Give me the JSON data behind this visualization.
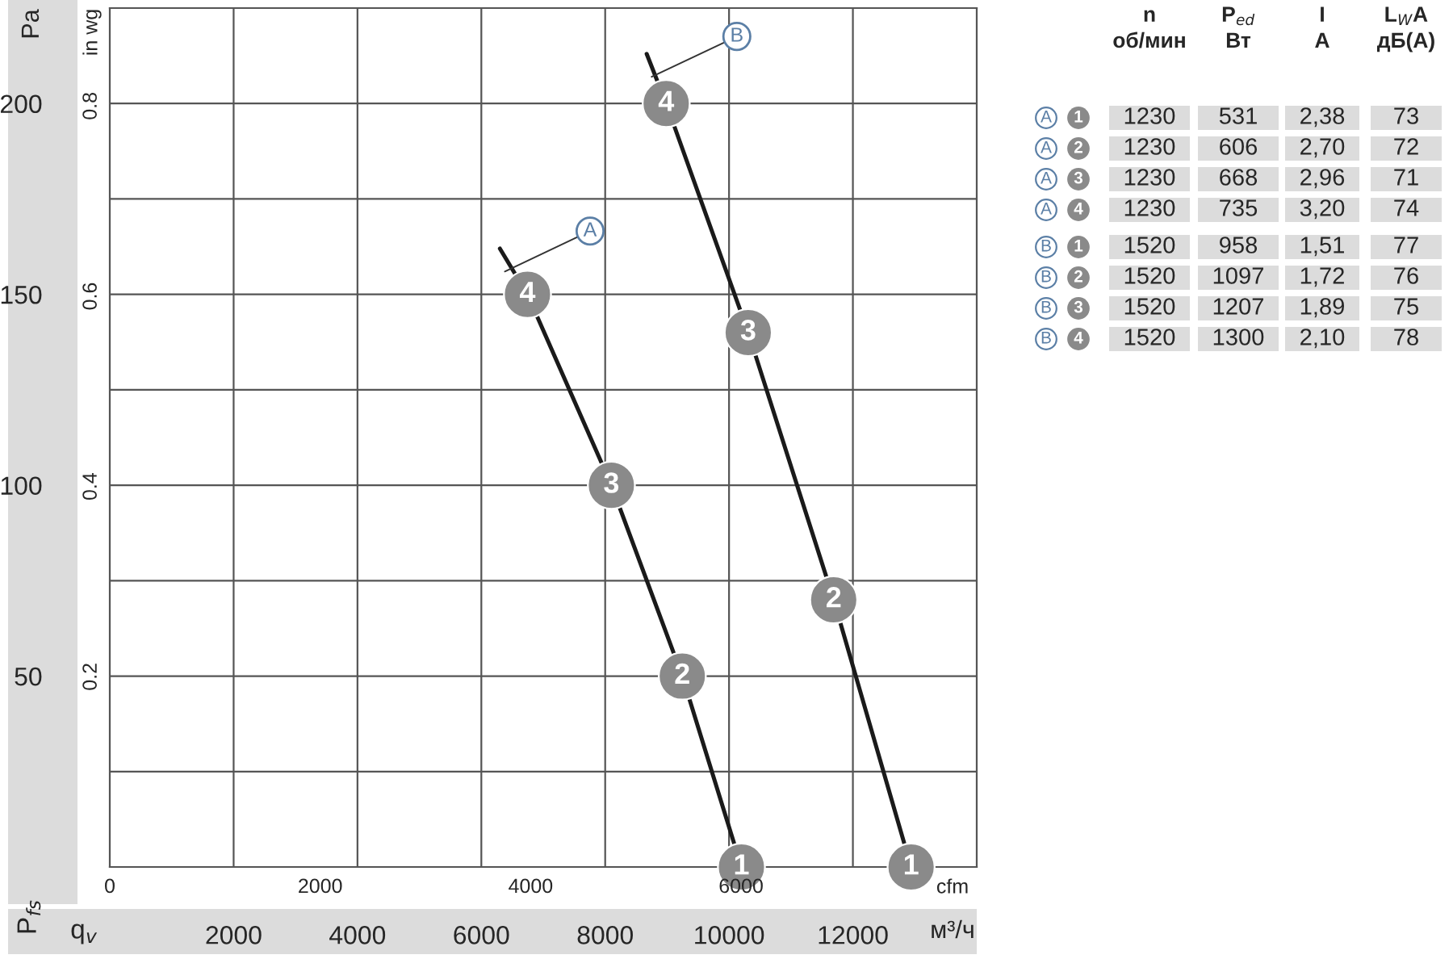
{
  "chart_data": [
    {
      "type": "line",
      "xlabel": "q$_{v}$",
      "ylabel": "P$_{fs}$",
      "x2label": "cfm",
      "y2label": "in wg",
      "annotations": [
        "Pa",
        "м³/ч",
        {
          "text": "1",
          "x": 10200,
          "y": 0
        },
        {
          "text": "2",
          "x": 9245,
          "y": 50
        },
        {
          "text": "3",
          "x": 8100,
          "y": 100
        },
        {
          "text": "4",
          "x": 6745,
          "y": 150
        },
        {
          "text": "1",
          "x": 12940,
          "y": 0
        },
        {
          "text": "2",
          "x": 11690,
          "y": 70
        },
        {
          "text": "3",
          "x": 10310,
          "y": 140
        },
        {
          "text": "4",
          "x": 8985,
          "y": 200
        }
      ],
      "series": [
        {
          "name": "A",
          "color": "#1a1a1a",
          "x": [
            6300,
            6745,
            8100,
            9245,
            10200
          ],
          "values": [
            162,
            150,
            100,
            50,
            0
          ]
        },
        {
          "name": "B",
          "color": "#1a1a1a",
          "x": [
            8670,
            8985,
            10310,
            11690,
            12940
          ],
          "values": [
            213,
            200,
            140,
            70,
            0
          ]
        }
      ],
      "xlim": [
        0,
        14000
      ],
      "xticks": [
        2000,
        4000,
        6000,
        8000,
        10000,
        12000
      ],
      "ylim": [
        0,
        225
      ],
      "yticks": [
        {
          "value": 25,
          "label": null
        },
        50,
        {
          "value": 75,
          "label": null
        },
        100,
        {
          "value": 125,
          "label": null
        },
        150,
        {
          "value": 175,
          "label": null
        },
        200
      ],
      "x2lim": [
        0,
        8240
      ],
      "x2ticks": [
        0,
        2000,
        4000,
        6000
      ],
      "y2lim": [
        0,
        0.903
      ],
      "y2ticks": [
        0.2,
        0.4,
        0.6,
        0.8
      ],
      "grid": true,
      "marker": "circle",
      "line_style": "solid",
      "legend": false
    },
    {
      "type": "other",
      "categories": [
        "n\nоб/мин",
        "P$_{ed}$\nВт",
        "I\nA",
        "L$_{W}$A\nдБ(A)"
      ],
      "y_categories": [
        "A",
        "A",
        "A",
        "A",
        "B",
        "B",
        "B",
        "B"
      ],
      "y2_categories": [
        "1",
        "2",
        "3",
        "4",
        "1",
        "2",
        "3",
        "4"
      ],
      "cell_labels": [
        [
          "1230",
          "531",
          "2,38",
          "73"
        ],
        [
          "1230",
          "606",
          "2,70",
          "72"
        ],
        [
          "1230",
          "668",
          "2,96",
          "71"
        ],
        [
          "1230",
          "735",
          "3,20",
          "74"
        ],
        [
          "1520",
          "958",
          "1,51",
          "77"
        ],
        [
          "1520",
          "1097",
          "1,72",
          "76"
        ],
        [
          "1520",
          "1207",
          "1,89",
          "75"
        ],
        [
          "1520",
          "1300",
          "2,10",
          "78"
        ]
      ]
    }
  ]
}
